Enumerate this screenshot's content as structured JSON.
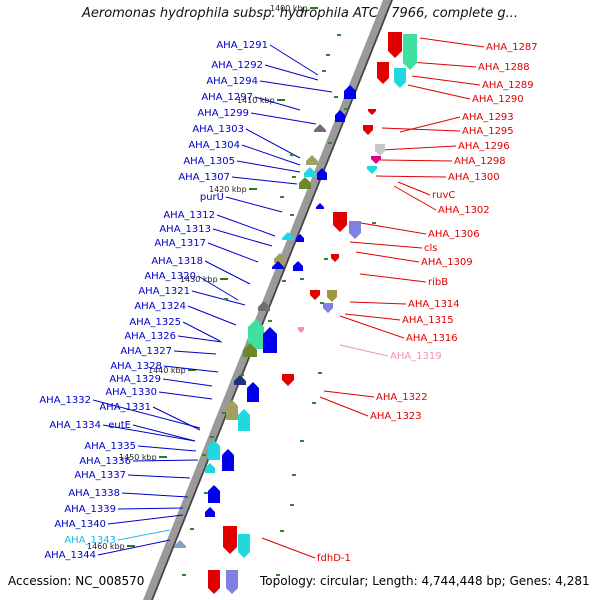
{
  "title": "Aeromonas hydrophila subsp. hydrophila ATCC 7966, complete g...",
  "footer": {
    "accession": "Accession: NC_008570",
    "summary": "Topology: circular; Length: 4,744,448 bp; Genes: 4,281"
  },
  "colors": {
    "plus_strand_label": "#0000cc",
    "minus_strand_label": "#e00000",
    "highlight_label": "#22b8e0",
    "pink_label": "#f090c0",
    "backbone": "#9a9a9a"
  },
  "scale_ticks": [
    "1400 kbp",
    "1410 kbp",
    "1420 kbp",
    "1430 kbp",
    "1440 kbp",
    "1450 kbp",
    "1460 kbp"
  ],
  "left_labels": [
    "AHA_1291",
    "AHA_1292",
    "AHA_1294",
    "AHA_1297",
    "AHA_1299",
    "AHA_1303",
    "AHA_1304",
    "AHA_1305",
    "AHA_1307",
    "purU",
    "AHA_1312",
    "AHA_1313",
    "AHA_1317",
    "AHA_1318",
    "AHA_1320",
    "AHA_1321",
    "AHA_1324",
    "AHA_1325",
    "AHA_1326",
    "AHA_1327",
    "AHA_1328",
    "AHA_1329",
    "AHA_1330",
    "AHA_1332",
    "AHA_1331",
    "AHA_1334",
    "eutE",
    "AHA_1335",
    "AHA_1336",
    "AHA_1337",
    "AHA_1338",
    "AHA_1339",
    "AHA_1340",
    "AHA_1343",
    "AHA_1344"
  ],
  "right_labels": [
    "AHA_1287",
    "AHA_1288",
    "AHA_1289",
    "AHA_1290",
    "AHA_1293",
    "AHA_1295",
    "AHA_1296",
    "AHA_1298",
    "AHA_1300",
    "ruvC",
    "AHA_1302",
    "AHA_1306",
    "cls",
    "AHA_1309",
    "ribB",
    "AHA_1314",
    "AHA_1315",
    "AHA_1316",
    "AHA_1319",
    "AHA_1322",
    "AHA_1323",
    "fdhD-1"
  ]
}
